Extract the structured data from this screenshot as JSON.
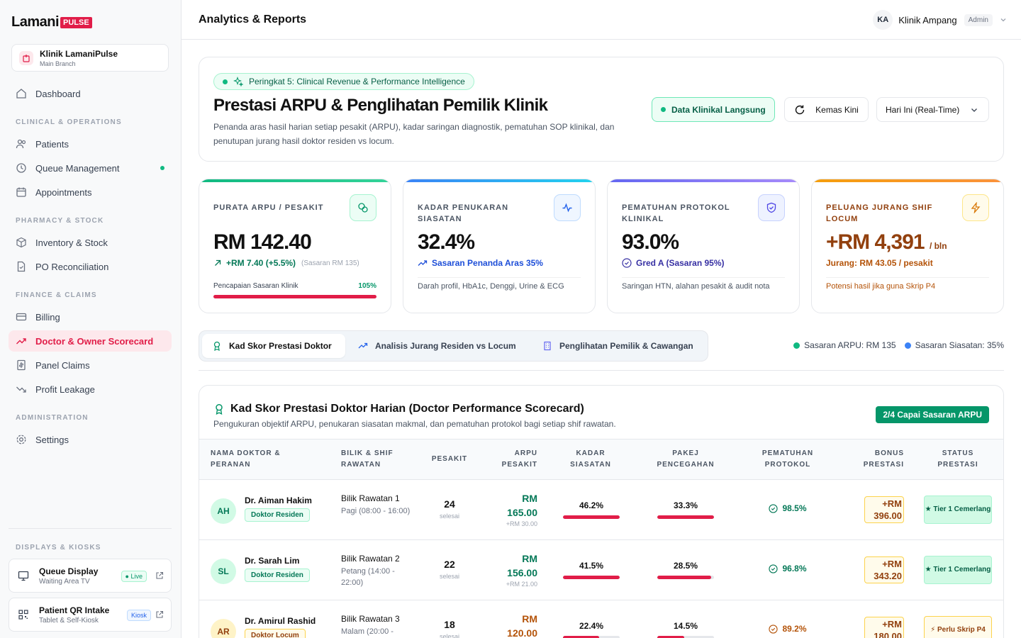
{
  "brand": {
    "name": "Lamani",
    "badge": "PULSE"
  },
  "clinic": {
    "name": "Klinik LamaniPulse",
    "branch": "Main Branch"
  },
  "nav": {
    "dashboard": "Dashboard",
    "sec_clinical": "CLINICAL & OPERATIONS",
    "patients": "Patients",
    "queue": "Queue Management",
    "appointments": "Appointments",
    "sec_pharmacy": "PHARMACY & STOCK",
    "inventory": "Inventory & Stock",
    "po": "PO Reconciliation",
    "sec_finance": "FINANCE & CLAIMS",
    "billing": "Billing",
    "scorecard": "Doctor & Owner Scorecard",
    "panel": "Panel Claims",
    "leakage": "Profit Leakage",
    "sec_admin": "ADMINISTRATION",
    "settings": "Settings",
    "sec_displays": "DISPLAYS & KIOSKS"
  },
  "displays": [
    {
      "title": "Queue Display",
      "sub": "Waiting Area TV",
      "badge": "Live"
    },
    {
      "title": "Patient QR Intake",
      "sub": "Tablet & Self-Kiosk",
      "badge": "Kiosk"
    }
  ],
  "header": {
    "title": "Analytics & Reports",
    "user_initials": "KA",
    "user_name": "Klinik Ampang",
    "role": "Admin"
  },
  "hero": {
    "pill": "Peringkat 5: Clinical Revenue & Performance Intelligence",
    "title": "Prestasi ARPU & Penglihatan Pemilik Klinik",
    "desc": "Penanda aras hasil harian setiap pesakit (ARPU), kadar saringan diagnostik, pematuhan SOP klinikal, dan penutupan jurang hasil doktor residen vs locum.",
    "live": "Data Klinikal Langsung",
    "refresh": "Kemas Kini",
    "period": "Hari Ini (Real-Time)"
  },
  "kpis": [
    {
      "label": "PURATA ARPU / PESAKIT",
      "value": "RM 142.40",
      "sub": "+RM 7.40 (+5.5%)",
      "muted": "(Sasaran RM 135)",
      "foot": "Pencapaian Sasaran Klinik",
      "foot_val": "105%",
      "progress": 1.0
    },
    {
      "label": "KADAR PENUKARAN SIASATAN",
      "value": "32.4%",
      "sub": "Sasaran Penanda Aras 35%",
      "foot": "Darah profil, HbA1c, Denggi, Urine & ECG"
    },
    {
      "label": "PEMATUHAN PROTOKOL KLINIKAL",
      "value": "93.0%",
      "sub": "Gred A (Sasaran 95%)",
      "foot": "Saringan HTN, alahan pesakit & audit nota"
    },
    {
      "label": "PELUANG JURANG SHIF LOCUM",
      "value": "+RM 4,391",
      "unit": "/ bln",
      "sub": "Jurang: RM 43.05 / pesakit",
      "foot": "Potensi hasil jika guna Skrip P4"
    }
  ],
  "tabs": [
    "Kad Skor Prestasi Doktor",
    "Analisis Jurang Residen vs Locum",
    "Penglihatan Pemilik & Cawangan"
  ],
  "legend": [
    "Sasaran ARPU: RM 135",
    "Sasaran Siasatan: 35%"
  ],
  "colors": {
    "accent": "#e11d48",
    "green": "#10b981",
    "blue": "#3b82f6",
    "amber": "#f59e0b"
  },
  "scorecard": {
    "title": "Kad Skor Prestasi Doktor Harian (Doctor Performance Scorecard)",
    "desc": "Pengukuran objektif ARPU, penukaran siasatan makmal, dan pematuhan protokol bagi setiap shif rawatan.",
    "badge": "2/4 Capai Sasaran ARPU",
    "headers": {
      "doctor1": "NAMA DOKTOR &",
      "doctor2": "PERANAN",
      "shift1": "BILIK & SHIF",
      "shift2": "RAWATAN",
      "patients": "PESAKIT",
      "arpu1": "ARPU",
      "arpu2": "PESAKIT",
      "inv1": "KADAR",
      "inv2": "SIASATAN",
      "prev1": "PAKEJ",
      "prev2": "PENCEGAHAN",
      "proto1": "PEMATUHAN",
      "proto2": "PROTOKOL",
      "bonus1": "BONUS",
      "bonus2": "PRESTASI",
      "status1": "STATUS",
      "status2": "PRESTASI"
    },
    "rows": [
      {
        "initials": "AH",
        "name": "Dr. Aiman Hakim",
        "role": "Doktor Residen",
        "room": "Bilik Rawatan 1",
        "shift": "Pagi (08:00 - 16:00)",
        "patients": "24",
        "patients_label": "selesai",
        "arpu_rm": "RM",
        "arpu_val": "165.00",
        "arpu_delta": "+RM 30.00",
        "inv": "46.2%",
        "inv_frac": 1.0,
        "prev": "33.3%",
        "prev_frac": 1.0,
        "proto": "98.5%",
        "bonus1": "+RM",
        "bonus2": "396.00",
        "status": "★ Tier 1 Cemerlang"
      },
      {
        "initials": "SL",
        "name": "Dr. Sarah Lim",
        "role": "Doktor Residen",
        "room": "Bilik Rawatan 2",
        "shift": "Petang (14:00 - 22:00)",
        "patients": "22",
        "patients_label": "selesai",
        "arpu_rm": "RM",
        "arpu_val": "156.00",
        "arpu_delta": "+RM 21.00",
        "inv": "41.5%",
        "inv_frac": 1.0,
        "prev": "28.5%",
        "prev_frac": 0.95,
        "proto": "96.8%",
        "bonus1": "+RM",
        "bonus2": "343.20",
        "status": "★ Tier 1 Cemerlang"
      },
      {
        "initials": "AR",
        "name": "Dr. Amirul Rashid",
        "role": "Doktor Locum",
        "room": "Bilik Rawatan 3",
        "shift": "Malam (20:00 -",
        "patients": "18",
        "patients_label": "selesai",
        "arpu_rm": "RM",
        "arpu_val": "120.00",
        "arpu_delta": "",
        "inv": "22.4%",
        "inv_frac": 0.64,
        "prev": "14.5%",
        "prev_frac": 0.48,
        "proto": "89.2%",
        "bonus1": "+RM",
        "bonus2": "180.00",
        "status": "⚡ Perlu Skrip P4"
      }
    ]
  }
}
